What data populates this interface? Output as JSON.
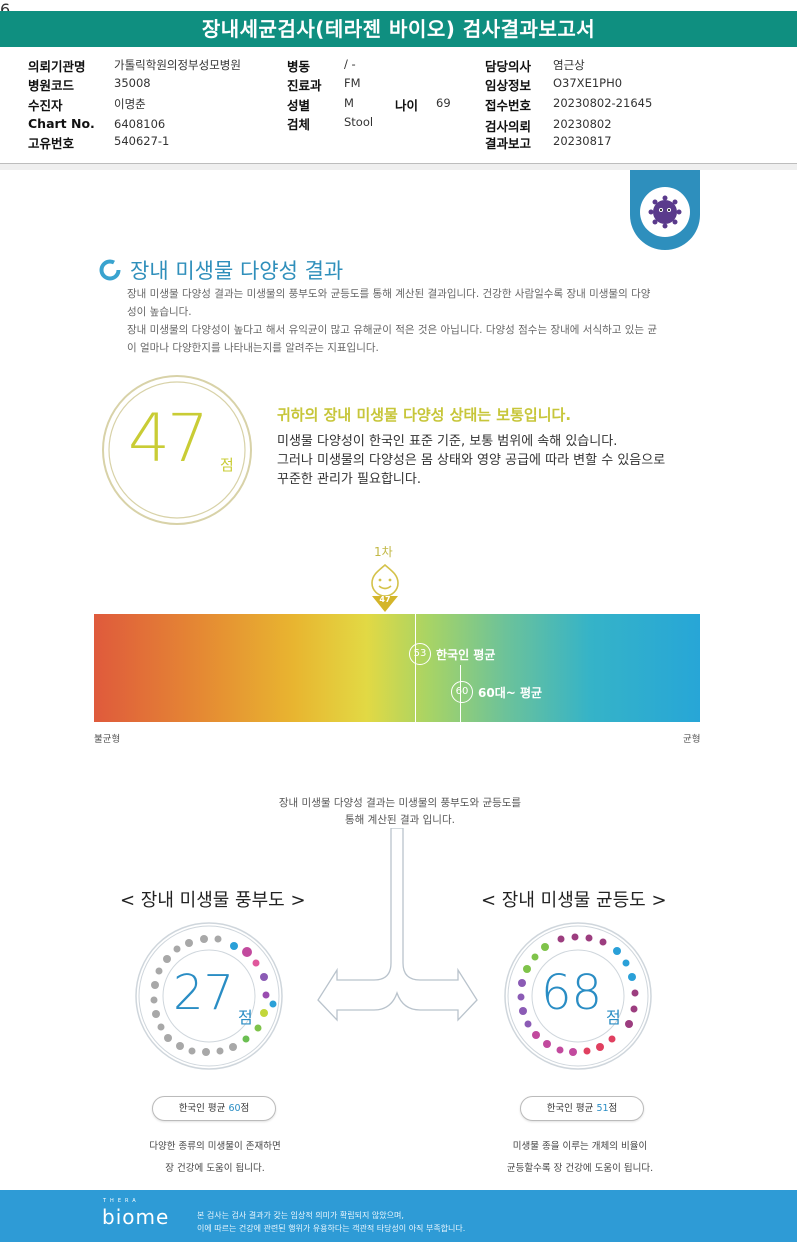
{
  "title": "장내세균검사(테라젠 바이오) 검사결과보고서",
  "info": {
    "hospital_label": "의뢰기관명",
    "hospital": "가톨릭학원의정부성모병원",
    "code_label": "병원코드",
    "code": "35008",
    "patient_label": "수진자",
    "patient": "이명춘",
    "chart_label": "Chart No.",
    "chart": "6408106",
    "unique_label": "고유번호",
    "unique": "540627-1",
    "ward_label": "병동",
    "ward": "/ -",
    "dept_label": "진료과",
    "dept": "FM",
    "sex_label": "성별",
    "sex": "M",
    "age_label": "나이",
    "age": "69",
    "specimen_label": "검체",
    "specimen": "Stool",
    "doctor_label": "담당의사",
    "doctor": "염근상",
    "clinical_label": "임상정보",
    "clinical": "O37XE1PH0",
    "receipt_label": "접수번호",
    "receipt": "20230802-21645",
    "request_label": "검사의뢰",
    "request": "20230802",
    "report_label": "결과보고",
    "report": "20230817"
  },
  "section": {
    "title": "장내 미생물 다양성 결과",
    "desc_lines": [
      "장내 미생물 다양성 결과는 미생물의 풍부도와 균등도를 통해 계산된 결과입니다. 건강한 사람일수록 장내 미생물의 다양",
      "성이 높습니다.",
      "장내 미생물의 다양성이 높다고 해서 유익균이 많고 유해균이 적은 것은 아닙니다. 다양성 점수는 장내에 서식하고 있는 균",
      "이 얼마나 다양한지를 나타내는지를 알려주는 지표입니다."
    ]
  },
  "score": {
    "value": "47",
    "unit": "점",
    "headline": "귀하의 장내 미생물 다양성 상태는 보통입니다.",
    "lines": [
      "미생물 다양성이 한국인 표준 기준, 보통 범위에 속해 있습니다.",
      "그러나 미생물의 다양성은 몸 상태와 영양 공급에 따라 변할 수 있음으로",
      "꾸준한 관리가 필요합니다."
    ]
  },
  "scale": {
    "marker_label": "1차",
    "marker_value": "47",
    "avg_korean_value": "53",
    "avg_korean_label": "한국인 평균",
    "avg_60s_value": "60",
    "avg_60s_label": "60대~ 평균",
    "left_label": "불균형",
    "right_label": "균형"
  },
  "center_note": [
    "장내 미생물 다양성 결과는 미생물의 풍부도와 균등도를",
    "통해 계산된 결과 입니다."
  ],
  "richness": {
    "title": "< 장내 미생물 풍부도 >",
    "value": "27",
    "unit": "점",
    "pill_prefix": "한국인 평균",
    "pill_value": "60",
    "pill_suffix": "점",
    "note": [
      "다양한 종류의 미생물이 존재하면",
      "장 건강에 도움이 됩니다."
    ]
  },
  "evenness": {
    "title": "< 장내 미생물 균등도 >",
    "value": "68",
    "unit": "점",
    "pill_prefix": "한국인 평균",
    "pill_value": "51",
    "pill_suffix": "점",
    "note": [
      "미생물 종을 이루는 개체의 비율이",
      "균등할수록 장 건강에 도움이 됩니다."
    ]
  },
  "footer": {
    "logo_small": "THERA",
    "logo": "biome",
    "disclaimer": [
      "본 검사는 검사 결과가 갖는 임상적 의미가 확립되지 않았으며,",
      "이에 따르는 건강에 관련된 행위가 유용하다는 객관적 타당성이 아직 부족합니다."
    ],
    "page": "6"
  },
  "colors": {
    "teal": "#0f8f80",
    "score": "#c9cc35",
    "blue": "#2a8dc4",
    "footer": "#2e9bd6"
  }
}
